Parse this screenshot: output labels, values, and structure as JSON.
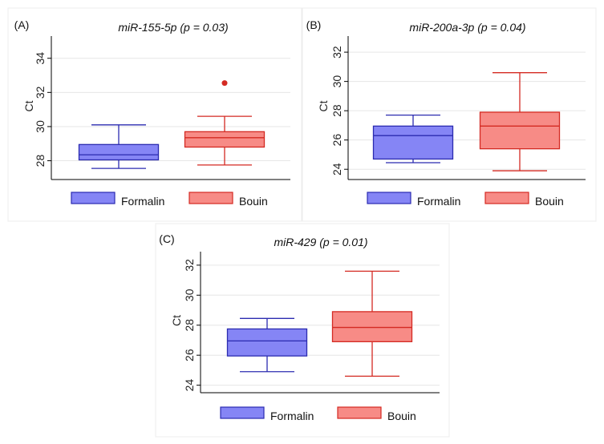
{
  "chart_data": [
    {
      "type": "box",
      "panel_label": "(A)",
      "title": "miR-155-5p (p = 0.03)",
      "ylabel": "Ct",
      "ylim": [
        26.9,
        35.3
      ],
      "yticks": [
        28,
        30,
        32,
        34
      ],
      "grid": true,
      "legend_position": "bottom",
      "groups": [
        {
          "name": "Formalin",
          "color": "#8585f5",
          "edge": "#2b2bb0",
          "whisker_low": 27.55,
          "q1": 28.05,
          "median": 28.35,
          "q3": 28.95,
          "whisker_high": 30.1,
          "outliers": []
        },
        {
          "name": "Bouin",
          "color": "#f78b86",
          "edge": "#d42a22",
          "whisker_low": 27.75,
          "q1": 28.8,
          "median": 29.35,
          "q3": 29.7,
          "whisker_high": 30.6,
          "outliers": [
            32.55
          ]
        }
      ]
    },
    {
      "type": "box",
      "panel_label": "(B)",
      "title": "miR-200a-3p (p = 0.04)",
      "ylabel": "Ct",
      "ylim": [
        23.3,
        33.1
      ],
      "yticks": [
        24,
        26,
        28,
        30,
        32
      ],
      "grid": true,
      "legend_position": "bottom",
      "groups": [
        {
          "name": "Formalin",
          "color": "#8585f5",
          "edge": "#2b2bb0",
          "whisker_low": 24.45,
          "q1": 24.7,
          "median": 26.3,
          "q3": 26.95,
          "whisker_high": 27.7,
          "outliers": []
        },
        {
          "name": "Bouin",
          "color": "#f78b86",
          "edge": "#d42a22",
          "whisker_low": 23.9,
          "q1": 25.4,
          "median": 26.95,
          "q3": 27.9,
          "whisker_high": 30.6,
          "outliers": []
        }
      ]
    },
    {
      "type": "box",
      "panel_label": "(C)",
      "title": "miR-429 (p = 0.01)",
      "ylabel": "Ct",
      "ylim": [
        23.5,
        32.9
      ],
      "yticks": [
        24,
        26,
        28,
        30,
        32
      ],
      "grid": true,
      "legend_position": "bottom",
      "groups": [
        {
          "name": "Formalin",
          "color": "#8585f5",
          "edge": "#2b2bb0",
          "whisker_low": 24.9,
          "q1": 25.95,
          "median": 26.95,
          "q3": 27.75,
          "whisker_high": 28.45,
          "outliers": []
        },
        {
          "name": "Bouin",
          "color": "#f78b86",
          "edge": "#d42a22",
          "whisker_low": 24.6,
          "q1": 26.9,
          "median": 27.85,
          "q3": 28.9,
          "whisker_high": 31.6,
          "outliers": []
        }
      ]
    }
  ]
}
